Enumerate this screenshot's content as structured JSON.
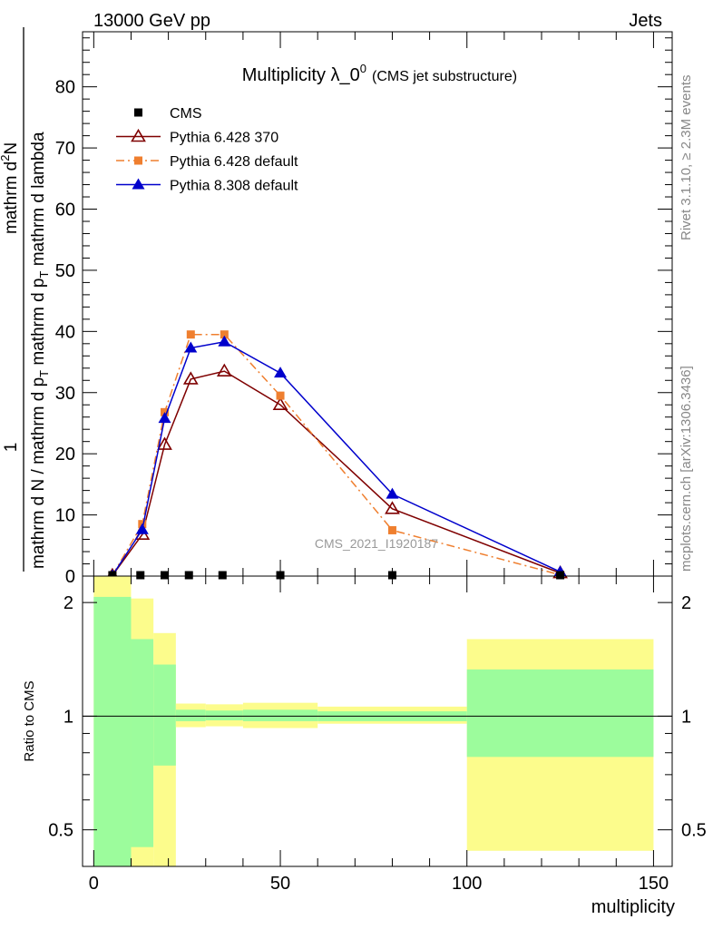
{
  "header": {
    "left": "13000 GeV pp",
    "right": "Jets",
    "side_upper": "Rivet 3.1.10, ≥ 2.3M events",
    "side_lower": "mcplots.cern.ch [arXiv:1306.3436]"
  },
  "chart_data": [
    {
      "type": "line",
      "title_main": "Multiplicity λ_0",
      "title_sup": "0",
      "title_sub": "(CMS jet substructure)",
      "watermark": "CMS_2021_I1920187",
      "ylabel_numerator": "1",
      "ylabel_denominator": "mathrm d N / mathrm d p",
      "ylabel_sub": "T",
      "ylabel_tail": "mathrm d p",
      "ylabel_sub2": "T",
      "ylabel_end": "mathrm d lambda",
      "ylabel_top": "mathrm d",
      "ylabel_top_sup": "2",
      "ylabel_top_end": "N",
      "xlim": [
        -3,
        155
      ],
      "ylim": [
        0,
        89
      ],
      "yticks": [
        0,
        10,
        20,
        30,
        40,
        50,
        60,
        70,
        80
      ],
      "ytick_labels": [
        "0",
        "10",
        "20",
        "30",
        "40",
        "50",
        "60",
        "70",
        "80"
      ],
      "legend_position": "top-left",
      "series": [
        {
          "name": "CMS",
          "color": "#000000",
          "marker": "square",
          "x": [
            5,
            12.5,
            19,
            25.5,
            34.5,
            50,
            80,
            125
          ],
          "y": [
            0,
            0,
            0,
            0,
            0,
            0,
            0,
            0
          ]
        },
        {
          "name": "Pythia 6.428 370",
          "color": "#7f0000",
          "marker": "open-triangle",
          "line": "solid",
          "x": [
            5,
            13,
            19,
            26,
            35,
            50,
            80,
            125
          ],
          "y": [
            0.1,
            6.8,
            21.5,
            32.2,
            33.5,
            28.0,
            11.0,
            0.5
          ]
        },
        {
          "name": "Pythia 6.428 default",
          "color": "#ef7f2f",
          "marker": "square",
          "line": "dashdot",
          "x": [
            5,
            13,
            19,
            26,
            35,
            50,
            80,
            125
          ],
          "y": [
            0.1,
            8.5,
            26.8,
            39.5,
            39.5,
            29.5,
            7.5,
            0.2
          ]
        },
        {
          "name": "Pythia 8.308 default",
          "color": "#0000cc",
          "marker": "triangle",
          "line": "solid",
          "x": [
            5,
            13,
            19,
            26,
            35,
            50,
            80,
            125
          ],
          "y": [
            0.1,
            7.6,
            25.8,
            37.3,
            38.3,
            33.2,
            13.4,
            0.7
          ]
        }
      ]
    },
    {
      "type": "area",
      "ylabel": "Ratio to CMS",
      "xlabel": "multiplicity",
      "scale": "log",
      "xlim": [
        -3,
        155
      ],
      "ylim": [
        0.4,
        2.35
      ],
      "xticks": [
        0,
        50,
        100,
        150
      ],
      "xtick_labels": [
        "0",
        "50",
        "100",
        "150"
      ],
      "yticks": [
        0.5,
        1,
        2
      ],
      "ytick_labels": [
        "0.5",
        "1",
        "2"
      ],
      "bins": [
        {
          "x0": 0,
          "x1": 10,
          "inner_lo": 0.4,
          "inner_hi": 2.07,
          "outer_lo": 0.4,
          "outer_hi": 2.35
        },
        {
          "x0": 10,
          "x1": 16,
          "inner_lo": 0.45,
          "inner_hi": 1.6,
          "outer_lo": 0.4,
          "outer_hi": 2.05
        },
        {
          "x0": 16,
          "x1": 22,
          "inner_lo": 0.74,
          "inner_hi": 1.37,
          "outer_lo": 0.4,
          "outer_hi": 1.66
        },
        {
          "x0": 22,
          "x1": 30,
          "inner_lo": 0.97,
          "inner_hi": 1.04,
          "outer_lo": 0.935,
          "outer_hi": 1.08
        },
        {
          "x0": 30,
          "x1": 40,
          "inner_lo": 0.975,
          "inner_hi": 1.035,
          "outer_lo": 0.94,
          "outer_hi": 1.075
        },
        {
          "x0": 40,
          "x1": 60,
          "inner_lo": 0.97,
          "inner_hi": 1.04,
          "outer_lo": 0.93,
          "outer_hi": 1.085
        },
        {
          "x0": 60,
          "x1": 100,
          "inner_lo": 0.97,
          "inner_hi": 1.03,
          "outer_lo": 0.955,
          "outer_hi": 1.06
        },
        {
          "x0": 100,
          "x1": 150,
          "inner_lo": 0.78,
          "inner_hi": 1.33,
          "outer_lo": 0.44,
          "outer_hi": 1.6
        }
      ],
      "colors": {
        "inner": "#9cfc9c",
        "outer": "#fcfc8c"
      }
    }
  ]
}
